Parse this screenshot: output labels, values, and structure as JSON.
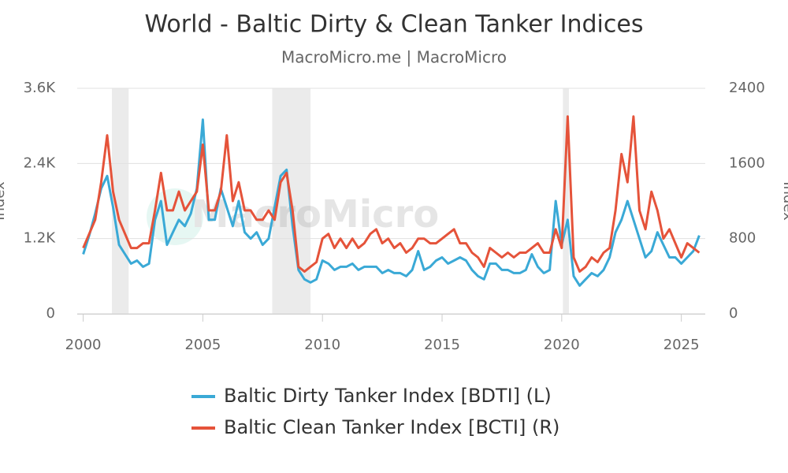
{
  "chart_data": {
    "type": "line",
    "title": "World - Baltic Dirty & Clean Tanker Indices",
    "subtitle": "MacroMicro.me | MacroMicro",
    "watermark": "MacroMicro",
    "y_label": "Index",
    "y2_label": "Index",
    "x": [
      2000,
      2000.25,
      2000.5,
      2000.75,
      2001,
      2001.25,
      2001.5,
      2001.75,
      2002,
      2002.25,
      2002.5,
      2002.75,
      2003,
      2003.25,
      2003.5,
      2003.75,
      2004,
      2004.25,
      2004.5,
      2004.75,
      2005,
      2005.25,
      2005.5,
      2005.75,
      2006,
      2006.25,
      2006.5,
      2006.75,
      2007,
      2007.25,
      2007.5,
      2007.75,
      2008,
      2008.25,
      2008.5,
      2008.75,
      2009,
      2009.25,
      2009.5,
      2009.75,
      2010,
      2010.25,
      2010.5,
      2010.75,
      2011,
      2011.25,
      2011.5,
      2011.75,
      2012,
      2012.25,
      2012.5,
      2012.75,
      2013,
      2013.25,
      2013.5,
      2013.75,
      2014,
      2014.25,
      2014.5,
      2014.75,
      2015,
      2015.25,
      2015.5,
      2015.75,
      2016,
      2016.25,
      2016.5,
      2016.75,
      2017,
      2017.25,
      2017.5,
      2017.75,
      2018,
      2018.25,
      2018.5,
      2018.75,
      2019,
      2019.25,
      2019.5,
      2019.75,
      2020,
      2020.25,
      2020.5,
      2020.75,
      2021,
      2021.25,
      2021.5,
      2021.75,
      2022,
      2022.25,
      2022.5,
      2022.75,
      2023,
      2023.25,
      2023.5,
      2023.75,
      2024,
      2024.25,
      2024.5,
      2024.75,
      2025,
      2025.25,
      2025.5,
      2025.75
    ],
    "series": [
      {
        "name": "Baltic Dirty Tanker Index [BDTI] (L)",
        "color": "#3aa9d6",
        "axis": "y",
        "values": [
          950,
          1250,
          1600,
          2000,
          2200,
          1700,
          1100,
          950,
          800,
          850,
          750,
          800,
          1500,
          1800,
          1100,
          1300,
          1500,
          1400,
          1600,
          2000,
          3100,
          1500,
          1500,
          2000,
          1700,
          1400,
          1800,
          1300,
          1200,
          1300,
          1100,
          1200,
          1700,
          2200,
          2300,
          1400,
          700,
          550,
          500,
          550,
          850,
          800,
          700,
          750,
          750,
          800,
          700,
          750,
          750,
          750,
          650,
          700,
          650,
          650,
          600,
          700,
          1000,
          700,
          750,
          850,
          900,
          800,
          850,
          900,
          850,
          700,
          600,
          550,
          800,
          800,
          700,
          700,
          650,
          650,
          700,
          950,
          750,
          650,
          700,
          1800,
          1100,
          1500,
          600,
          450,
          550,
          650,
          600,
          700,
          900,
          1300,
          1500,
          1800,
          1500,
          1200,
          900,
          1000,
          1300,
          1100,
          900,
          900,
          800,
          900,
          1000,
          1250
        ]
      },
      {
        "name": "Baltic Clean Tanker Index [BCTI] (R)",
        "color": "#e5533a",
        "axis": "y2",
        "values": [
          700,
          850,
          1000,
          1400,
          1900,
          1300,
          1000,
          850,
          700,
          700,
          750,
          750,
          1100,
          1500,
          1100,
          1100,
          1300,
          1100,
          1200,
          1300,
          1800,
          1100,
          1100,
          1300,
          1900,
          1200,
          1400,
          1100,
          1100,
          1000,
          1000,
          1100,
          1000,
          1400,
          1500,
          1100,
          500,
          450,
          500,
          550,
          800,
          850,
          700,
          800,
          700,
          800,
          700,
          750,
          850,
          900,
          750,
          800,
          700,
          750,
          650,
          700,
          800,
          800,
          750,
          750,
          800,
          850,
          900,
          750,
          750,
          650,
          600,
          500,
          700,
          650,
          600,
          650,
          600,
          650,
          650,
          700,
          750,
          650,
          650,
          900,
          700,
          2100,
          600,
          450,
          500,
          600,
          550,
          650,
          700,
          1100,
          1700,
          1400,
          2100,
          1100,
          900,
          1300,
          1100,
          800,
          900,
          750,
          600,
          750,
          700,
          650
        ]
      }
    ],
    "xlim": [
      1999.75,
      2026
    ],
    "xticks": [
      2000,
      2005,
      2010,
      2015,
      2020,
      2025
    ],
    "ylim": [
      0,
      3600
    ],
    "yticks": [
      0,
      {
        "value": 1200,
        "label": "1.2K"
      },
      {
        "value": 2400,
        "label": "2.4K"
      },
      {
        "value": 3600,
        "label": "3.6K"
      }
    ],
    "y2lim": [
      0,
      2400
    ],
    "y2ticks": [
      0,
      800,
      1600,
      2400
    ],
    "bands": [
      [
        2001.2,
        2001.9
      ],
      [
        2007.9,
        2009.5
      ],
      [
        2020.05,
        2020.3
      ]
    ],
    "grid": true
  }
}
